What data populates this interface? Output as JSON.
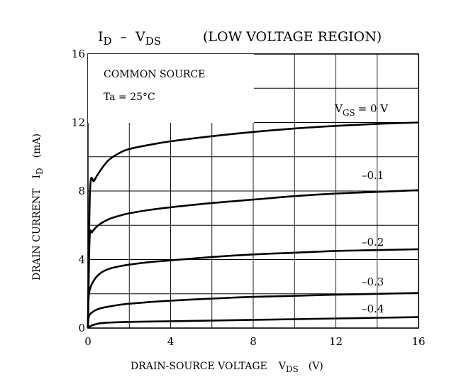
{
  "chart_data": {
    "type": "line",
    "title": "ID – VDS",
    "title_parts": {
      "i_main": "I",
      "i_sub": "D",
      "dash": "–",
      "v_main": "V",
      "v_sub": "DS",
      "subtitle": "(LOW VOLTAGE REGION)"
    },
    "xlabel": {
      "main": "DRAIN-SOURCE VOLTAGE",
      "sym": "V",
      "sub": "DS",
      "unit": "(V)"
    },
    "ylabel": {
      "main": "DRAIN CURRENT",
      "sym": "I",
      "sub": "D",
      "unit": "(mA)"
    },
    "xlim": [
      0,
      16
    ],
    "ylim": [
      0,
      16
    ],
    "xticks": [
      0,
      4,
      8,
      12,
      16
    ],
    "yticks": [
      0,
      4,
      8,
      12,
      16
    ],
    "grid": true,
    "annotations": {
      "line1": "COMMON SOURCE",
      "line2": "Ta = 25°C"
    },
    "legend_header": {
      "sym": "V",
      "sub": "GS",
      "value": "= 0 V"
    },
    "series": [
      {
        "name": "0 V",
        "x": [
          0,
          0.1,
          0.3,
          0.6,
          1.0,
          1.5,
          2.0,
          3,
          4,
          6,
          8,
          10,
          12,
          14,
          16
        ],
        "y": [
          0,
          8.0,
          8.6,
          9.2,
          9.8,
          10.2,
          10.45,
          10.7,
          10.9,
          11.2,
          11.45,
          11.65,
          11.8,
          11.92,
          12.0
        ]
      },
      {
        "name": "–0.1",
        "x": [
          0,
          0.08,
          0.2,
          0.5,
          1.0,
          1.5,
          2.0,
          3,
          4,
          6,
          8,
          10,
          12,
          14,
          16
        ],
        "y": [
          0,
          5.2,
          5.6,
          6.0,
          6.35,
          6.55,
          6.7,
          6.9,
          7.05,
          7.3,
          7.5,
          7.7,
          7.85,
          7.95,
          8.05
        ]
      },
      {
        "name": "–0.2",
        "x": [
          0,
          0.05,
          0.3,
          0.6,
          1.0,
          1.5,
          2.0,
          3,
          4,
          6,
          8,
          10,
          12,
          14,
          16
        ],
        "y": [
          0,
          2.0,
          2.8,
          3.2,
          3.45,
          3.6,
          3.7,
          3.85,
          3.95,
          4.15,
          4.3,
          4.4,
          4.5,
          4.55,
          4.6
        ]
      },
      {
        "name": "–0.3",
        "x": [
          0,
          0.05,
          0.3,
          0.6,
          1.0,
          1.5,
          2,
          3,
          4,
          6,
          8,
          10,
          12,
          14,
          16
        ],
        "y": [
          0,
          0.7,
          1.0,
          1.15,
          1.25,
          1.35,
          1.42,
          1.52,
          1.6,
          1.72,
          1.82,
          1.88,
          1.95,
          2.0,
          2.05
        ]
      },
      {
        "name": "–0.4",
        "x": [
          0,
          0.1,
          0.3,
          0.6,
          1.0,
          2,
          4,
          6,
          8,
          10,
          12,
          14,
          16
        ],
        "y": [
          0,
          0.1,
          0.2,
          0.28,
          0.32,
          0.36,
          0.4,
          0.44,
          0.48,
          0.52,
          0.56,
          0.6,
          0.64
        ]
      }
    ],
    "series_labels": [
      "–0.1",
      "–0.2",
      "–0.3",
      "–0.4"
    ]
  }
}
